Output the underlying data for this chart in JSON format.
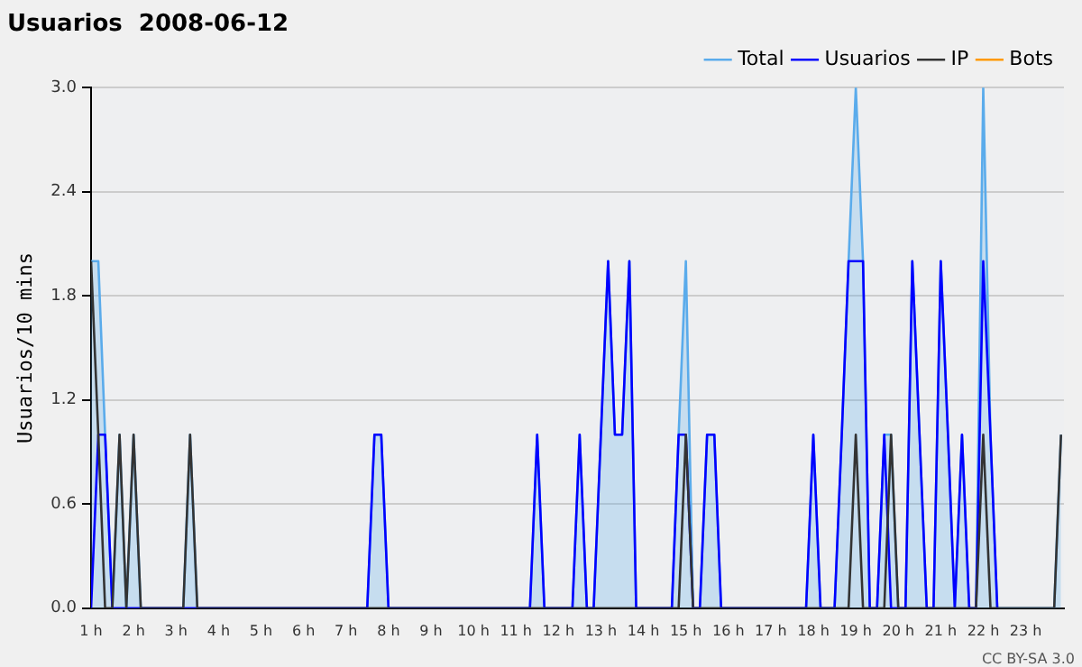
{
  "chart_data": {
    "type": "line",
    "title": "Usuarios  2008-06-12",
    "ylabel": "Usuarios/10 mins",
    "x": [
      1,
      1.17,
      1.33,
      1.5,
      1.67,
      1.83,
      2,
      2.17,
      2.33,
      2.5,
      2.67,
      2.83,
      3,
      3.17,
      3.33,
      3.5,
      3.67,
      3.83,
      4,
      4.17,
      4.33,
      4.5,
      4.67,
      4.83,
      5,
      5.17,
      5.33,
      5.5,
      5.67,
      5.83,
      6,
      6.17,
      6.33,
      6.5,
      6.67,
      6.83,
      7,
      7.17,
      7.33,
      7.5,
      7.67,
      7.83,
      8,
      8.17,
      8.33,
      8.5,
      8.67,
      8.83,
      9,
      9.17,
      9.33,
      9.5,
      9.67,
      9.83,
      10,
      10.17,
      10.33,
      10.5,
      10.67,
      10.83,
      11,
      11.17,
      11.33,
      11.5,
      11.67,
      11.83,
      12,
      12.17,
      12.33,
      12.5,
      12.67,
      12.83,
      13,
      13.17,
      13.33,
      13.5,
      13.67,
      13.83,
      14,
      14.17,
      14.33,
      14.5,
      14.67,
      14.83,
      15,
      15.17,
      15.33,
      15.5,
      15.67,
      15.83,
      16,
      16.17,
      16.33,
      16.5,
      16.67,
      16.83,
      17,
      17.17,
      17.33,
      17.5,
      17.67,
      17.83,
      18,
      18.17,
      18.33,
      18.5,
      18.67,
      18.83,
      19,
      19.17,
      19.33,
      19.5,
      19.67,
      19.83,
      20,
      20.17,
      20.33,
      20.5,
      20.67,
      20.83,
      21,
      21.17,
      21.33,
      21.5,
      21.67,
      21.83,
      22,
      22.17,
      22.33,
      22.5,
      22.67,
      22.83,
      23,
      23.17,
      23.33,
      23.5,
      23.67,
      23.83
    ],
    "series": [
      {
        "name": "Total",
        "type": "area",
        "color": "#5aabeb",
        "values": [
          2,
          2,
          1,
          0,
          1,
          0,
          1,
          0,
          0,
          0,
          0,
          0,
          0,
          0,
          1,
          0,
          0,
          0,
          0,
          0,
          0,
          0,
          0,
          0,
          0,
          0,
          0,
          0,
          0,
          0,
          0,
          0,
          0,
          0,
          0,
          0,
          0,
          0,
          0,
          0,
          1,
          1,
          0,
          0,
          0,
          0,
          0,
          0,
          0,
          0,
          0,
          0,
          0,
          0,
          0,
          0,
          0,
          0,
          0,
          0,
          0,
          0,
          0,
          1,
          0,
          0,
          0,
          0,
          0,
          1,
          0,
          0,
          1,
          2,
          1,
          1,
          2,
          0,
          0,
          0,
          0,
          0,
          0,
          1,
          2,
          0,
          0,
          1,
          1,
          0,
          0,
          0,
          0,
          0,
          0,
          0,
          0,
          0,
          0,
          0,
          0,
          0,
          1,
          0,
          0,
          0,
          1,
          2,
          3,
          2,
          0,
          0,
          1,
          1,
          0,
          0,
          2,
          1,
          0,
          0,
          2,
          1,
          0,
          1,
          0,
          0,
          3,
          1,
          0,
          0,
          0,
          0,
          0,
          0,
          0,
          0,
          0,
          1
        ]
      },
      {
        "name": "Usuarios",
        "type": "line",
        "color": "#0000ff",
        "values": [
          0,
          1,
          1,
          0,
          null,
          null,
          null,
          null,
          null,
          null,
          null,
          null,
          null,
          null,
          null,
          null,
          null,
          null,
          null,
          null,
          null,
          null,
          null,
          null,
          null,
          null,
          null,
          null,
          null,
          null,
          null,
          null,
          null,
          null,
          null,
          null,
          null,
          null,
          null,
          0,
          1,
          1,
          0,
          null,
          null,
          null,
          null,
          null,
          null,
          null,
          null,
          null,
          null,
          null,
          null,
          null,
          null,
          null,
          null,
          null,
          null,
          null,
          0,
          1,
          0,
          null,
          null,
          null,
          0,
          1,
          0,
          0,
          1,
          2,
          1,
          1,
          2,
          0,
          null,
          null,
          null,
          null,
          0,
          1,
          1,
          0,
          0,
          1,
          1,
          0,
          null,
          null,
          null,
          null,
          null,
          null,
          null,
          null,
          null,
          null,
          null,
          0,
          1,
          0,
          null,
          0,
          1,
          2,
          2,
          2,
          0,
          0,
          1,
          0,
          null,
          0,
          2,
          1,
          0,
          0,
          2,
          1,
          0,
          1,
          0,
          0,
          2,
          1,
          0,
          null,
          null,
          null,
          null,
          null,
          null,
          null,
          null,
          null
        ]
      },
      {
        "name": "IP",
        "type": "line",
        "color": "#333333",
        "values": [
          2,
          1,
          0,
          0,
          1,
          0,
          1,
          0,
          0,
          0,
          0,
          0,
          0,
          0,
          1,
          0,
          0,
          0,
          0,
          0,
          0,
          0,
          0,
          0,
          0,
          0,
          0,
          0,
          0,
          0,
          0,
          0,
          0,
          0,
          0,
          0,
          0,
          0,
          0,
          0,
          0,
          0,
          0,
          0,
          0,
          0,
          0,
          0,
          0,
          0,
          0,
          0,
          0,
          0,
          0,
          0,
          0,
          0,
          0,
          0,
          0,
          0,
          0,
          0,
          0,
          0,
          0,
          0,
          0,
          0,
          0,
          0,
          0,
          0,
          0,
          0,
          0,
          0,
          0,
          0,
          0,
          0,
          0,
          0,
          1,
          0,
          0,
          0,
          0,
          0,
          0,
          0,
          0,
          0,
          0,
          0,
          0,
          0,
          0,
          0,
          0,
          0,
          0,
          0,
          0,
          0,
          0,
          0,
          1,
          0,
          0,
          0,
          0,
          1,
          0,
          0,
          0,
          0,
          0,
          0,
          0,
          0,
          0,
          0,
          0,
          0,
          1,
          0,
          0,
          0,
          0,
          0,
          0,
          0,
          0,
          0,
          0,
          1
        ]
      },
      {
        "name": "Bots",
        "type": "line",
        "color": "#ff9900",
        "values": [
          null,
          null,
          null,
          null,
          null,
          null,
          null,
          null,
          null,
          null,
          null,
          null,
          null,
          null,
          null,
          null,
          null,
          null,
          null,
          null,
          null,
          null,
          null,
          null,
          null,
          null,
          null,
          null,
          null,
          null,
          null,
          null,
          null,
          null,
          null,
          null,
          null,
          null,
          null,
          null,
          null,
          null,
          null,
          null,
          null,
          null,
          null,
          null,
          null,
          null,
          null,
          null,
          null,
          null,
          null,
          null,
          null,
          null,
          null,
          null,
          null,
          null,
          null,
          null,
          null,
          null,
          null,
          null,
          null,
          null,
          null,
          null,
          null,
          null,
          null,
          null,
          null,
          null,
          null,
          null,
          null,
          null,
          null,
          null,
          null,
          null,
          null,
          null,
          null,
          null,
          null,
          null,
          null,
          null,
          null,
          null,
          null,
          null,
          null,
          null,
          null,
          null,
          null,
          null,
          null,
          null,
          null,
          null,
          null,
          null,
          null,
          null,
          null,
          null,
          null,
          null,
          null,
          null,
          null,
          null,
          null,
          null,
          null,
          null,
          null,
          null,
          null,
          null,
          null,
          null,
          null,
          null,
          null,
          null,
          null,
          null,
          null,
          null
        ]
      }
    ],
    "xlim": [
      1,
      23.9
    ],
    "xticks": [
      {
        "value": 1,
        "label": "1 h"
      },
      {
        "value": 2,
        "label": "2 h"
      },
      {
        "value": 3,
        "label": "3 h"
      },
      {
        "value": 4,
        "label": "4 h"
      },
      {
        "value": 5,
        "label": "5 h"
      },
      {
        "value": 6,
        "label": "6 h"
      },
      {
        "value": 7,
        "label": "7 h"
      },
      {
        "value": 8,
        "label": "8 h"
      },
      {
        "value": 9,
        "label": "9 h"
      },
      {
        "value": 10,
        "label": "10 h"
      },
      {
        "value": 11,
        "label": "11 h"
      },
      {
        "value": 12,
        "label": "12 h"
      },
      {
        "value": 13,
        "label": "13 h"
      },
      {
        "value": 14,
        "label": "14 h"
      },
      {
        "value": 15,
        "label": "15 h"
      },
      {
        "value": 16,
        "label": "16 h"
      },
      {
        "value": 17,
        "label": "17 h"
      },
      {
        "value": 18,
        "label": "18 h"
      },
      {
        "value": 19,
        "label": "19 h"
      },
      {
        "value": 20,
        "label": "20 h"
      },
      {
        "value": 21,
        "label": "21 h"
      },
      {
        "value": 22,
        "label": "22 h"
      },
      {
        "value": 23,
        "label": "23 h"
      }
    ],
    "ylim": [
      0,
      3
    ],
    "yticks": [
      {
        "value": 0,
        "label": "0.0"
      },
      {
        "value": 0.6,
        "label": "0.6"
      },
      {
        "value": 1.2,
        "label": "1.2"
      },
      {
        "value": 1.8,
        "label": "1.8"
      },
      {
        "value": 2.4,
        "label": "2.4"
      },
      {
        "value": 3,
        "label": "3.0"
      }
    ],
    "grid": "y",
    "legend": "top right",
    "marker": "none",
    "line_style": "solid",
    "annotations": [
      "CC BY-SA 3.0"
    ]
  }
}
